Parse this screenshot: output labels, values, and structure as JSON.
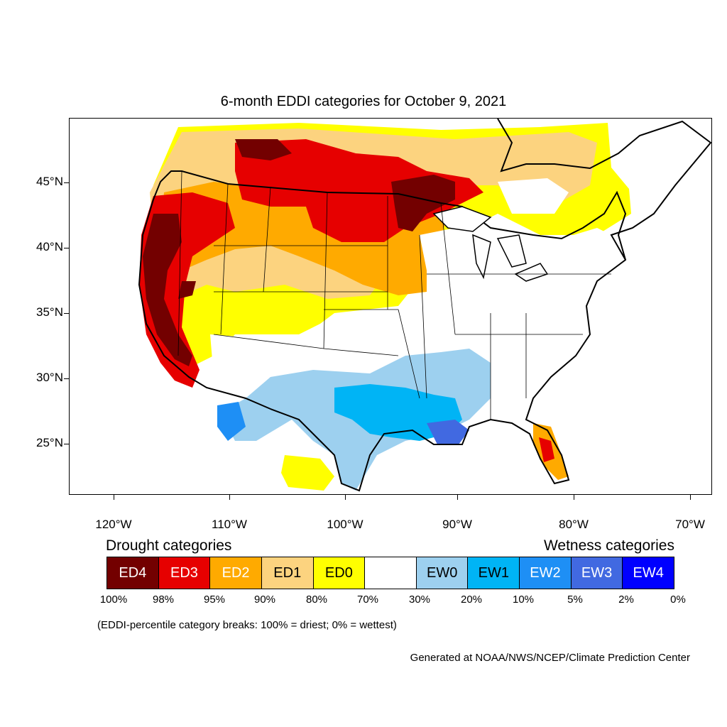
{
  "title": "6-month EDDI categories for October 9, 2021",
  "lat_labels": [
    "45°N",
    "40°N",
    "35°N",
    "30°N",
    "25°N"
  ],
  "lon_labels": [
    "120°W",
    "110°W",
    "100°W",
    "90°W",
    "80°W",
    "70°W"
  ],
  "legend": {
    "drought_heading": "Drought categories",
    "wetness_heading": "Wetness categories",
    "categories": [
      {
        "label": "ED4",
        "color": "#730000",
        "text_color": "#ffffff"
      },
      {
        "label": "ED3",
        "color": "#e60000",
        "text_color": "#ffffff"
      },
      {
        "label": "ED2",
        "color": "#ffaa00",
        "text_color": "#ffffff"
      },
      {
        "label": "ED1",
        "color": "#fcd37f",
        "text_color": "#000000"
      },
      {
        "label": "ED0",
        "color": "#ffff00",
        "text_color": "#000000"
      },
      {
        "label": "",
        "color": "#ffffff",
        "text_color": "#000000"
      },
      {
        "label": "EW0",
        "color": "#9dd0ef",
        "text_color": "#000000"
      },
      {
        "label": "EW1",
        "color": "#00b4f5",
        "text_color": "#000000"
      },
      {
        "label": "EW2",
        "color": "#1e8ff5",
        "text_color": "#ffffff"
      },
      {
        "label": "EW3",
        "color": "#4169e1",
        "text_color": "#ffffff"
      },
      {
        "label": "EW4",
        "color": "#0000ff",
        "text_color": "#ffffff"
      }
    ],
    "percent_breaks": [
      "100%",
      "98%",
      "95%",
      "90%",
      "80%",
      "70%",
      "30%",
      "20%",
      "10%",
      "5%",
      "2%",
      "0%"
    ]
  },
  "note": "(EDDI-percentile category breaks: 100% = driest; 0% = wettest)",
  "credit": "Generated at NOAA/NWS/NCEP/Climate Prediction Center"
}
